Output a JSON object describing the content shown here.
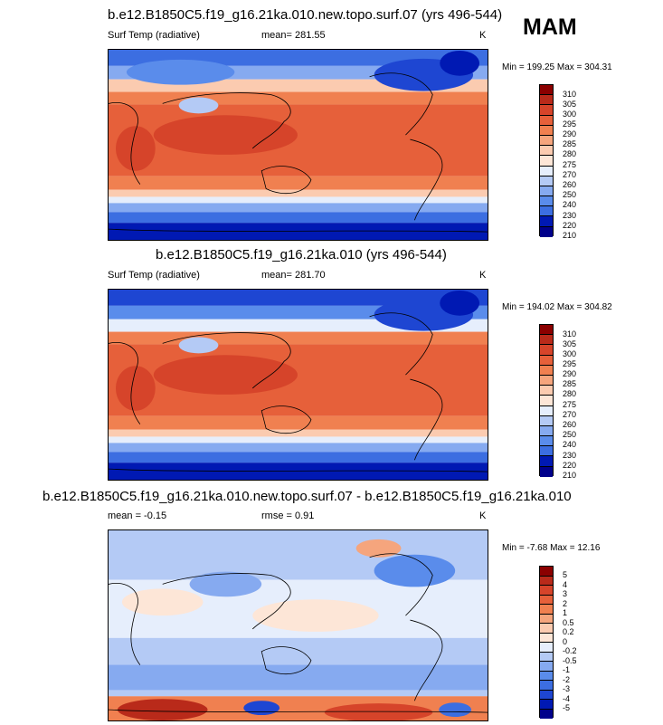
{
  "season": "MAM",
  "colors": {
    "abs_scale": [
      "#00008b",
      "#0019b3",
      "#1e46d2",
      "#3c6ee1",
      "#5a8ceb",
      "#86aaf0",
      "#b4caf5",
      "#e6eefc",
      "#fde6d7",
      "#fbcbb0",
      "#f5a57d",
      "#f08050",
      "#e6603a",
      "#d6442a",
      "#b92a1a",
      "#8b0000"
    ],
    "diff_scale": [
      "#00008b",
      "#0019b3",
      "#1e46d2",
      "#3c6ee1",
      "#5a8ceb",
      "#86aaf0",
      "#b4caf5",
      "#e6eefc",
      "#fde6d7",
      "#fbcbb0",
      "#f5a57d",
      "#f08050",
      "#e6603a",
      "#d6442a",
      "#b92a1a",
      "#8b0000"
    ]
  },
  "chart_data": [
    {
      "type": "heatmap",
      "title": "b.e12.B1850C5.f19_g16.21ka.010.new.topo.surf.07 (yrs 496-544)",
      "variable": "Surf Temp (radiative)",
      "mean_label": "mean= 281.55",
      "units": "K",
      "minmax_label": "Min = 199.25 Max = 304.31",
      "levels": [
        "210",
        "220",
        "230",
        "240",
        "250",
        "260",
        "270",
        "275",
        "280",
        "285",
        "290",
        "295",
        "300",
        "305",
        "310"
      ]
    },
    {
      "type": "heatmap",
      "title": "b.e12.B1850C5.f19_g16.21ka.010 (yrs 496-544)",
      "variable": "Surf Temp (radiative)",
      "mean_label": "mean= 281.70",
      "units": "K",
      "minmax_label": "Min = 194.02 Max = 304.82",
      "levels": [
        "210",
        "220",
        "230",
        "240",
        "250",
        "260",
        "270",
        "275",
        "280",
        "285",
        "290",
        "295",
        "300",
        "305",
        "310"
      ]
    },
    {
      "type": "heatmap",
      "title": "b.e12.B1850C5.f19_g16.21ka.010.new.topo.surf.07 - b.e12.B1850C5.f19_g16.21ka.010",
      "mean_label": "mean =  -0.15",
      "rmse_label": "rmse =   0.91",
      "units": "K",
      "minmax_label": "Min =  -7.68 Max =  12.16",
      "levels": [
        "-5",
        "-4",
        "-3",
        "-2",
        "-1",
        "-0.5",
        "-0.2",
        "0",
        "0.2",
        "0.5",
        "1",
        "2",
        "3",
        "4",
        "5"
      ]
    }
  ]
}
